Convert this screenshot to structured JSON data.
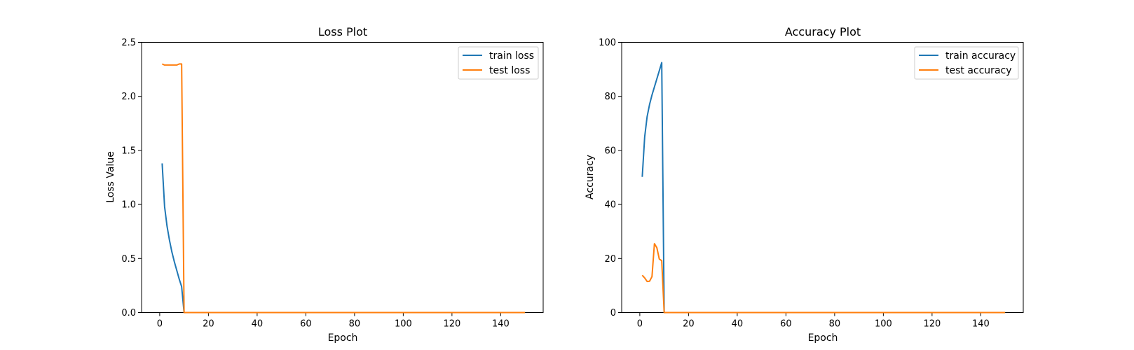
{
  "colors": {
    "series_1": "#1f77b4",
    "series_2": "#ff7f0e"
  },
  "chart_data": [
    {
      "type": "line",
      "title": "Loss Plot",
      "xlabel": "Epoch",
      "ylabel": "Loss Value",
      "xlim": [
        -7.45,
        157.45
      ],
      "ylim": [
        0,
        2.5
      ],
      "xticks": [
        0,
        20,
        40,
        60,
        80,
        100,
        120,
        140
      ],
      "yticks": [
        0.0,
        0.5,
        1.0,
        1.5,
        2.0,
        2.5
      ],
      "ytick_labels": [
        "0.0",
        "0.5",
        "1.0",
        "1.5",
        "2.0",
        "2.5"
      ],
      "legend_position": "top-right",
      "series": [
        {
          "name": "train loss",
          "color": "#1f77b4",
          "x": [
            1,
            2,
            3,
            4,
            5,
            6,
            7,
            8,
            9,
            10,
            150
          ],
          "y": [
            1.38,
            0.98,
            0.8,
            0.67,
            0.56,
            0.47,
            0.39,
            0.31,
            0.24,
            0.0,
            0.0
          ]
        },
        {
          "name": "test loss",
          "color": "#ff7f0e",
          "x": [
            1,
            2,
            3,
            4,
            5,
            6,
            7,
            8,
            9,
            10,
            150
          ],
          "y": [
            2.3,
            2.29,
            2.29,
            2.29,
            2.29,
            2.29,
            2.29,
            2.3,
            2.3,
            0.0,
            0.0
          ]
        }
      ]
    },
    {
      "type": "line",
      "title": "Accuracy Plot",
      "xlabel": "Epoch",
      "ylabel": "Accuracy",
      "xlim": [
        -7.45,
        157.45
      ],
      "ylim": [
        0,
        100
      ],
      "xticks": [
        0,
        20,
        40,
        60,
        80,
        100,
        120,
        140
      ],
      "yticks": [
        0,
        20,
        40,
        60,
        80,
        100
      ],
      "ytick_labels": [
        "0",
        "20",
        "40",
        "60",
        "80",
        "100"
      ],
      "legend_position": "top-right",
      "series": [
        {
          "name": "train accuracy",
          "color": "#1f77b4",
          "x": [
            1,
            2,
            3,
            4,
            5,
            6,
            7,
            8,
            9,
            10,
            150
          ],
          "y": [
            50.2,
            65.0,
            72.5,
            77.0,
            80.5,
            83.5,
            86.5,
            89.5,
            92.5,
            0.0,
            0.0
          ]
        },
        {
          "name": "test accuracy",
          "color": "#ff7f0e",
          "x": [
            1,
            2,
            3,
            4,
            5,
            6,
            7,
            8,
            9,
            10,
            150
          ],
          "y": [
            13.8,
            12.8,
            11.5,
            11.6,
            13.3,
            25.5,
            24.0,
            19.8,
            19.2,
            0.0,
            0.0
          ]
        }
      ]
    }
  ]
}
